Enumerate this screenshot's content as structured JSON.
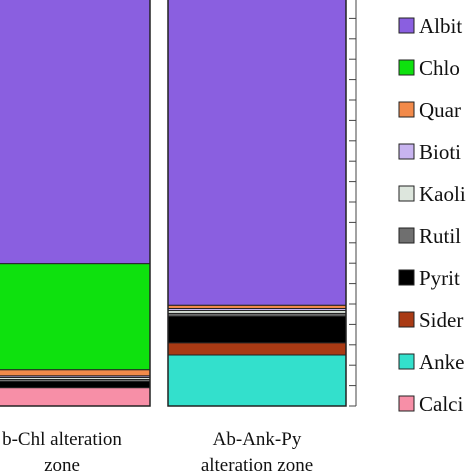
{
  "chart_data": {
    "type": "bar",
    "stacked": true,
    "normalized": true,
    "ylim": [
      0,
      100
    ],
    "categories": [
      {
        "lines": [
          "b-Chl alteration",
          "zone"
        ]
      },
      {
        "lines": [
          "Ab-Ank-Py",
          "alteration zone"
        ]
      }
    ],
    "series": [
      {
        "name": "Calci",
        "color": "#f78fa7",
        "values": [
          4.5,
          0
        ]
      },
      {
        "name": "Anke",
        "color": "#33e0cc",
        "values": [
          0,
          12.5
        ]
      },
      {
        "name": "Sider",
        "color": "#a93a14",
        "values": [
          0,
          3
        ]
      },
      {
        "name": "Pyrit",
        "color": "#000000",
        "values": [
          1.5,
          6.5
        ]
      },
      {
        "name": "Rutil",
        "color": "#6f6f6f",
        "values": [
          0.5,
          0.7
        ]
      },
      {
        "name": "Kaoli",
        "color": "#dde6dd",
        "values": [
          0.5,
          0.7
        ]
      },
      {
        "name": "Bioti",
        "color": "#c8b4f0",
        "values": [
          0.4,
          0.5
        ]
      },
      {
        "name": "Quar",
        "color": "#f28a4a",
        "values": [
          1.5,
          0.8
        ]
      },
      {
        "name": "Chlo",
        "color": "#0ee10e",
        "values": [
          26,
          0
        ]
      },
      {
        "name": "Albit",
        "color": "#8a5fe0",
        "values": [
          65,
          75.3
        ]
      }
    ],
    "legend_position": "right"
  }
}
